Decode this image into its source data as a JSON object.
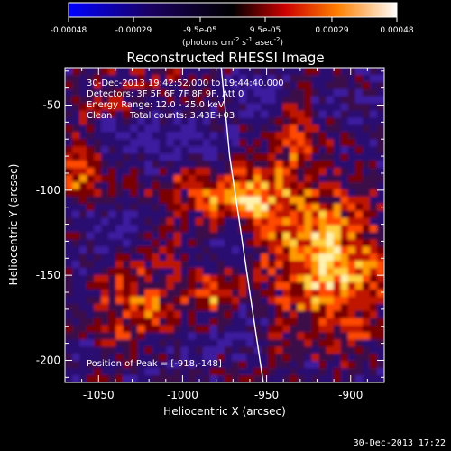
{
  "chart_data": {
    "type": "heatmap",
    "title": "Reconstructed RHESSI Image",
    "xlabel": "Heliocentric X (arcsec)",
    "ylabel": "Heliocentric Y (arcsec)",
    "xlim": [
      -1070,
      -880
    ],
    "ylim": [
      -213,
      -28
    ],
    "x_ticks": [
      -1050,
      -1000,
      -950,
      -900
    ],
    "y_ticks": [
      -50,
      -100,
      -150,
      -200
    ],
    "colorbar": {
      "units_html": "(photons cm<tspan baseline-shift=\"super\" font-size=\"7\">-2</tspan> s<tspan baseline-shift=\"super\" font-size=\"7\">-1</tspan> asec<tspan baseline-shift=\"super\" font-size=\"7\">-2</tspan>)",
      "range": [
        -0.00048,
        0.00048
      ],
      "tick_labels": [
        "-0.00048",
        "-0.00029",
        "-9.5e-05",
        "9.5e-05",
        "0.00029",
        "0.00048"
      ],
      "colormap": "RHESSI blue-black-red-yellow-white"
    },
    "annotations": {
      "time_range": "30-Dec-2013 19:42:52.000 to 19:44:40.000",
      "detectors": "Detectors: 3F 5F 6F 7F 8F 9F, Att 0",
      "energy": "Energy Range: 12.0 - 25.0 keV",
      "clean_label": "Clean",
      "counts": "Total counts: 3.43E+03",
      "peak": "Position of Peak = [-918,-148]"
    },
    "peak": [
      -918,
      -148
    ],
    "limb": [
      [
        -977,
        -28
      ],
      [
        -972,
        -80
      ],
      [
        -966,
        -120
      ],
      [
        -960,
        -160
      ],
      [
        -952,
        -213
      ]
    ],
    "grid": false,
    "legend": "none"
  },
  "footer": {
    "timestamp": "30-Dec-2013 17:22"
  }
}
